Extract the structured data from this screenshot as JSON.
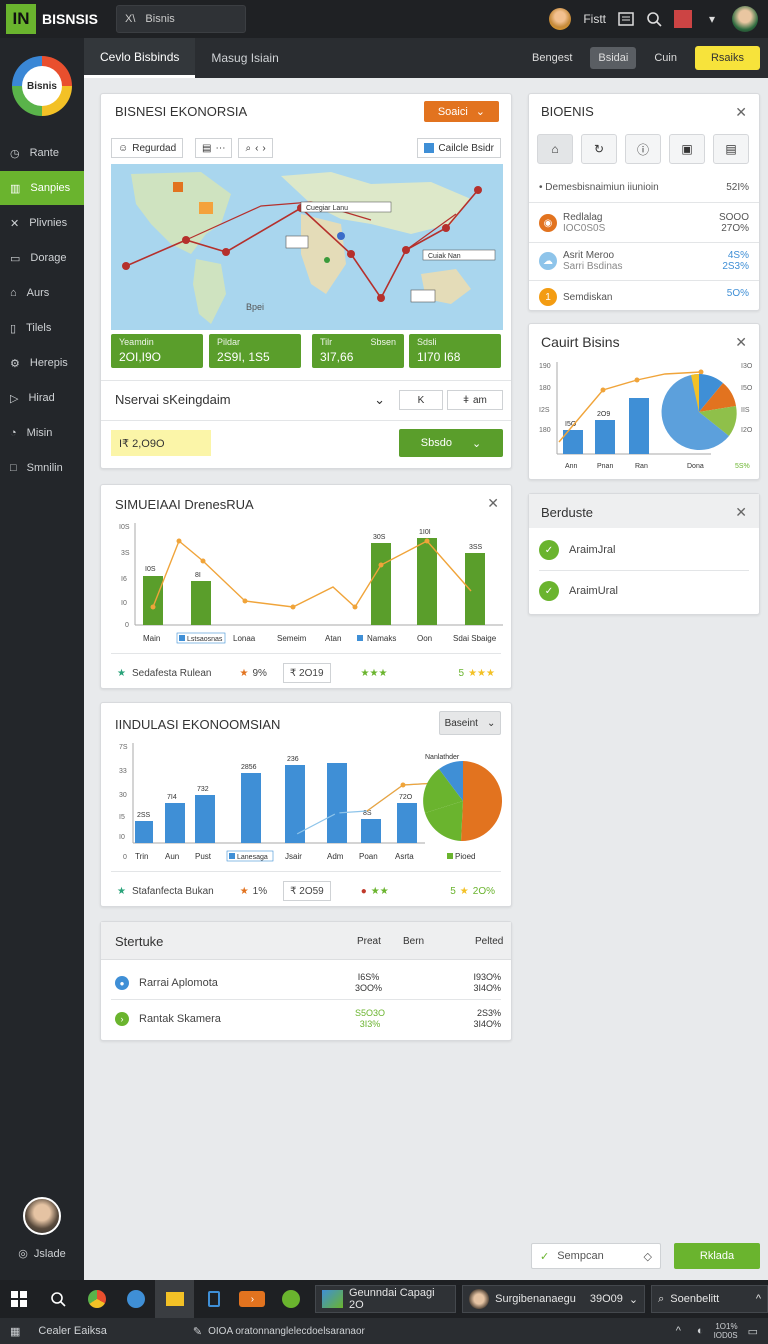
{
  "topbar": {
    "logo": "IN",
    "brand": "BISNSIS",
    "search_icon_text": "X\\",
    "search_text": "Bisnis",
    "user_name": "Fistt"
  },
  "sidebar": {
    "logo_text": "Bisnis",
    "items": [
      {
        "label": "Rante",
        "icon": "clock-icon"
      },
      {
        "label": "Sanpies",
        "icon": "chart-icon"
      },
      {
        "label": "Plivnies",
        "icon": "cross-icon"
      },
      {
        "label": "Dorage",
        "icon": "folder-icon"
      },
      {
        "label": "Aurs",
        "icon": "home-icon"
      },
      {
        "label": "Tilels",
        "icon": "document-icon"
      },
      {
        "label": "Herepis",
        "icon": "settings-icon"
      },
      {
        "label": "Hirad",
        "icon": "send-icon"
      },
      {
        "label": "Misin",
        "icon": "chat-icon"
      },
      {
        "label": "Smnilin",
        "icon": "square-icon"
      }
    ],
    "bottom_label": "Jslade"
  },
  "tabs": {
    "items": [
      "Cevlo Bisbinds",
      "Masug Isiain"
    ],
    "right": [
      "Bengest",
      "Bsidai",
      "Cuin",
      "Rsaiks"
    ]
  },
  "map_card": {
    "title": "BISNESI EKONORSIA",
    "action": "Soaici",
    "chips": [
      "Regurdad",
      "",
      "",
      "Cailcle Bsidr"
    ],
    "labels": [
      "Bpei",
      "Cuegiar Lanu",
      "Cuiak Nan"
    ],
    "stats": [
      {
        "label": "Yeamdin",
        "label2": "",
        "value": "2OI,I9O"
      },
      {
        "label": "Pildar",
        "label2": "",
        "value": "2S9I, 1S5"
      },
      {
        "label": "Tilr",
        "label2": "Sbsen",
        "value": "3I7,66"
      },
      {
        "label": "Sdsli",
        "label2": "",
        "value": "1I70 I68"
      }
    ],
    "dropdown": "Nservai sKeingdaim",
    "small_btn1": "K",
    "small_btn2": "am",
    "amount": "I₹ 2,O9O",
    "submit": "Sbsdo"
  },
  "bisnis_panel": {
    "title": "BIOENIS",
    "rows": [
      {
        "label": "Demesbisnaimiun iiunioin",
        "value": "52I%"
      },
      {
        "label": "Redlalag",
        "label2": "IOC0S0S",
        "value": "SOOO",
        "value2": "27O%"
      },
      {
        "label": "Asrit Meroo",
        "label2": "Sarri Bsdinas",
        "value": "4S%",
        "value2": "2S3%"
      },
      {
        "label": "Semdiskan",
        "value": "5O%"
      }
    ]
  },
  "cauit_card": {
    "title": "Cauirt Bisins",
    "y_ticks": [
      "190",
      "180",
      "I2S",
      "180"
    ],
    "right_ticks": [
      "I3O",
      "I5O",
      "IIS",
      "I2O"
    ],
    "bar_labels": [
      "I5O",
      "2O9"
    ],
    "x_labels": [
      "Ann",
      "Pnan",
      "Ran",
      "Dona",
      "5S%"
    ]
  },
  "berduste_card": {
    "title": "Berduste",
    "items": [
      "AraimJral",
      "AraimUral"
    ]
  },
  "simulasi_card": {
    "title": "SIMUEIAAI DrenesRUA",
    "y_ticks": [
      "I0S",
      "3S",
      "I6",
      "I0",
      "0"
    ],
    "x_labels": [
      "Main",
      "Lonaa",
      "Semeim",
      "Atan",
      "Namaks",
      "Oon",
      "Sdai Sbaige"
    ],
    "bar_labels": [
      "I0S",
      "8I",
      "30S",
      "1I0I",
      "3SS"
    ],
    "legend": "Lstsaosnas",
    "footer": {
      "f1": "Sedafesta Rulean",
      "f2": "9%",
      "f3": "₹ 2O19",
      "f4": "",
      "f5": "5"
    }
  },
  "indulasi_card": {
    "title": "IINDULASI EKONOOMSIAN",
    "select": "Baseint",
    "y_ticks": [
      "7S",
      "33",
      "30",
      "I5",
      "I0",
      "0"
    ],
    "x_labels": [
      "Trin",
      "Aun",
      "Pust",
      "Jsair",
      "Adm",
      "Poan",
      "Asrta"
    ],
    "bar_labels": [
      "2SS",
      "7I4",
      "732",
      "2856",
      "236",
      "72O",
      "8S"
    ],
    "legend": "Lanesaga",
    "pie_label": "Nanlathder",
    "pie_legend": "Pioed",
    "footer": {
      "f1": "Stafanfecta Bukan",
      "f2": "1%",
      "f3": "₹ 2O59",
      "f4": "",
      "f5": "5",
      "f6": "2O%"
    }
  },
  "table_card": {
    "title": "Stertuke",
    "headers": [
      "Preat",
      "Bern",
      "Pelted"
    ],
    "rows": [
      {
        "name": "Rarrai Aplomota",
        "value": "I6S%",
        "value2": "3OO%",
        "r": "I93O%",
        "r2": "3I4O%"
      },
      {
        "name": "Rantak Skamera",
        "value": "S5O3O",
        "value2": "3I3%",
        "r": "2S3%",
        "r2": "3I4O%"
      }
    ]
  },
  "bottom_actions": {
    "search": "Sempcan",
    "button": "Rklada"
  },
  "taskbar": {
    "chip1": "Geunndai Capagi 2O",
    "chip2": "Surgibenanaegu",
    "chip2_val": "39O09",
    "chip3": "Soenbelitt"
  },
  "statusbar": {
    "left": "Cealer Eaiksa",
    "middle": "OIOA oratonnanglelecdoelsaranaor",
    "time1": "1O1%",
    "time2": "IOD0S"
  },
  "colors": {
    "green": "#5a9e2b",
    "orange": "#e2731f",
    "blue": "#3f8fd6",
    "yellow": "#f7e33b"
  }
}
